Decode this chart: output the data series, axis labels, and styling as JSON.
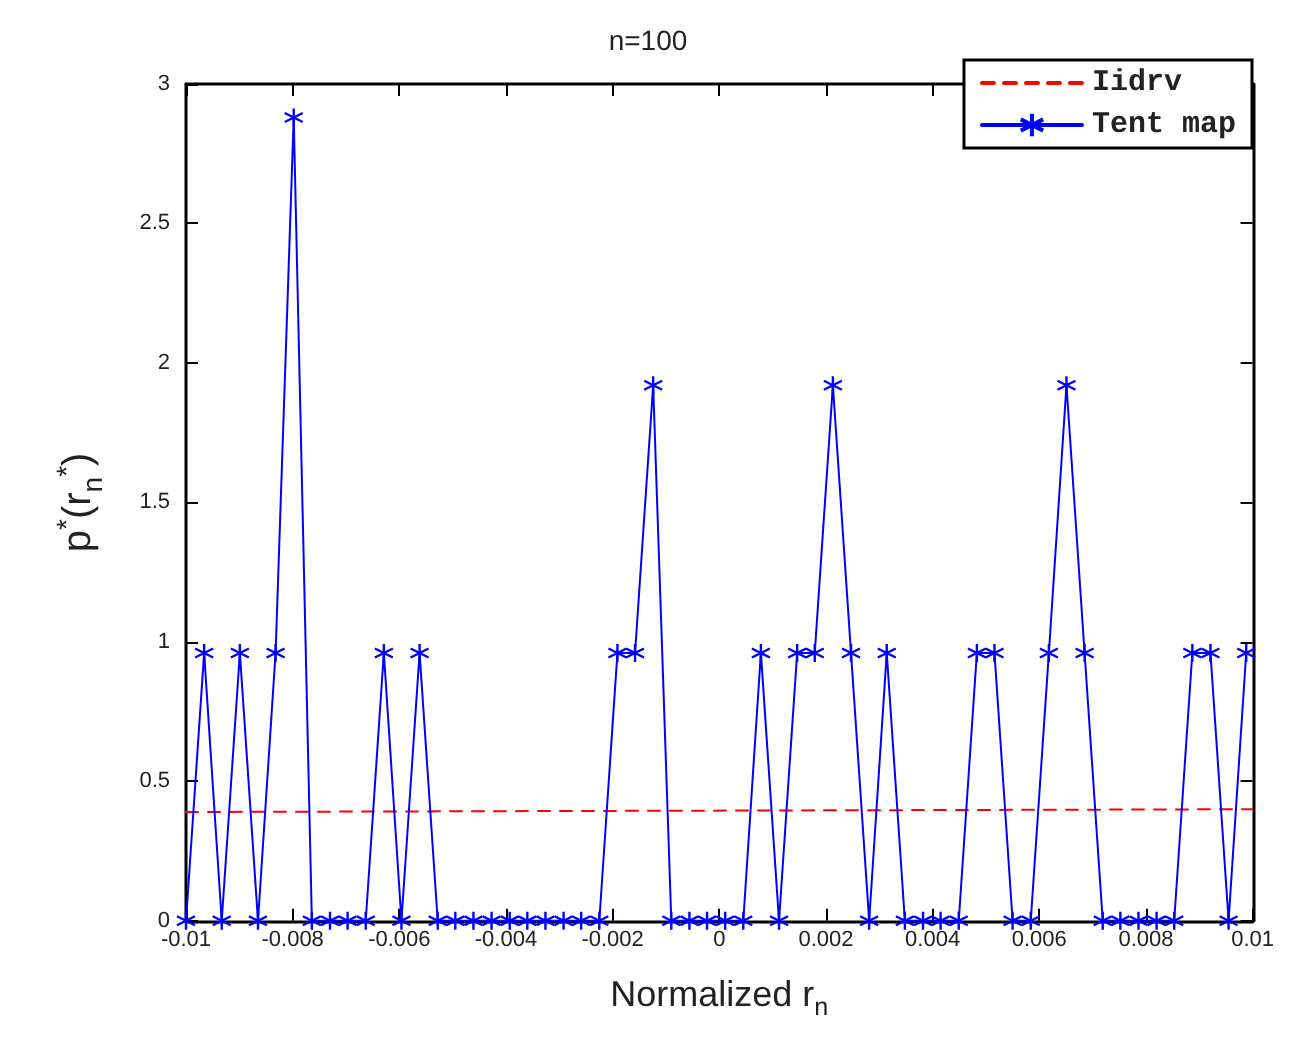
{
  "chart_data": {
    "type": "line",
    "title": "n=100",
    "xlabel": "Normalized r$_{n}$",
    "ylabel": "p$^{*}$(r$_{n}$$^{*}$)",
    "xlim": [
      -0.01,
      0.01
    ],
    "xticks": [
      -0.01,
      -0.008,
      -0.006,
      -0.004,
      -0.002,
      0,
      0.002,
      0.004,
      0.006,
      0.008,
      0.01
    ],
    "ylim": [
      0,
      3
    ],
    "yticks": [
      0,
      0.5,
      1,
      1.5,
      2,
      2.5,
      3
    ],
    "grid": false,
    "legend": "top right",
    "series": [
      {
        "name": "Iidrv",
        "color": "#ff0000",
        "line_style": "dashed",
        "marker": "none",
        "x": [
          -0.01,
          0.01
        ],
        "values": [
          0.39,
          0.4
        ]
      },
      {
        "name": "Tent map",
        "color": "#0000ff",
        "line_style": "solid",
        "marker": "cross",
        "x": [
          -0.01,
          -0.00966,
          -0.00933,
          -0.00899,
          -0.00865,
          -0.00832,
          -0.00798,
          -0.00764,
          -0.0073,
          -0.00697,
          -0.00663,
          -0.00629,
          -0.00596,
          -0.00562,
          -0.00528,
          -0.00495,
          -0.00461,
          -0.00427,
          -0.00393,
          -0.0036,
          -0.00326,
          -0.00292,
          -0.00259,
          -0.00225,
          -0.00191,
          -0.00158,
          -0.00124,
          -0.0009,
          -0.00056,
          -0.00023,
          0.00011,
          0.00045,
          0.00078,
          0.00112,
          0.00146,
          0.00179,
          0.00213,
          0.00247,
          0.00281,
          0.00314,
          0.00348,
          0.00382,
          0.00415,
          0.00449,
          0.00483,
          0.00516,
          0.0055,
          0.00584,
          0.00618,
          0.00651,
          0.00685,
          0.00719,
          0.00752,
          0.00786,
          0.0082,
          0.00853,
          0.00887,
          0.00921,
          0.00955,
          0.00988
        ],
        "values": [
          0,
          0.96,
          0,
          0.96,
          0,
          0.96,
          2.88,
          0,
          0,
          0,
          0,
          0.96,
          0,
          0.96,
          0,
          0,
          0,
          0,
          0,
          0,
          0,
          0,
          0,
          0,
          0.96,
          0.96,
          1.92,
          0,
          0,
          0,
          0,
          0,
          0.96,
          0,
          0.96,
          0.96,
          1.92,
          0.96,
          0,
          0.96,
          0,
          0,
          0,
          0,
          0.96,
          0.96,
          0,
          0,
          0.96,
          1.92,
          0.96,
          0,
          0,
          0,
          0,
          0,
          0.96,
          0.96,
          0,
          0.96
        ]
      }
    ]
  }
}
